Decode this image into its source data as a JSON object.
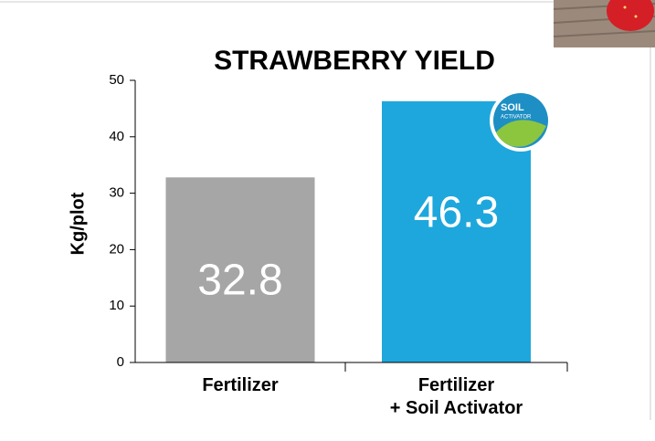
{
  "chart_data": {
    "type": "bar",
    "title": "STRAWBERRY YIELD",
    "y_label": "Kg/plot",
    "categories": [
      "Fertilizer",
      "Fertilizer\n+ Soil Activator"
    ],
    "values": [
      32.8,
      46.3
    ],
    "colors": [
      "#a6a6a6",
      "#1ea7dc"
    ],
    "ylim": [
      0,
      50
    ],
    "yticks": [
      0,
      10,
      20,
      30,
      40,
      50
    ],
    "logo": {
      "line1": "SOIL",
      "line2": "ACTIVATOR"
    }
  }
}
